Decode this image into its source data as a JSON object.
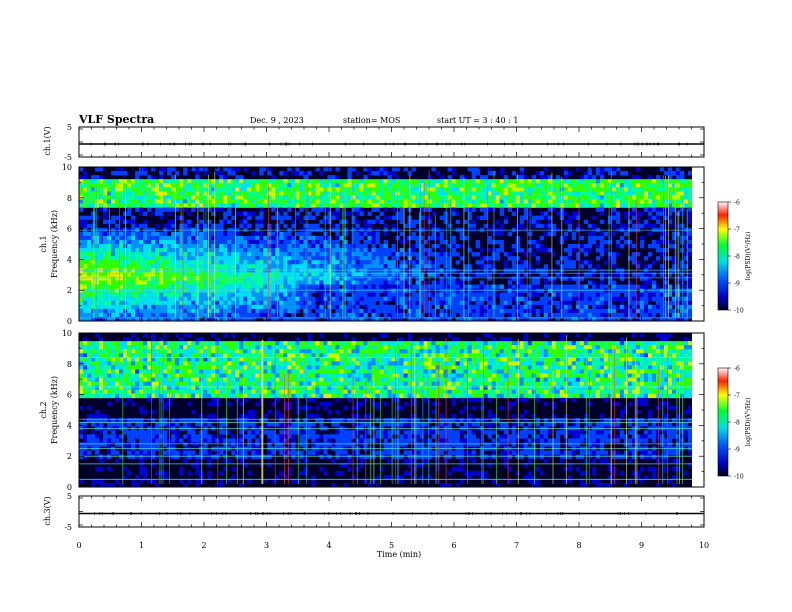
{
  "header": {
    "title": "VLF Spectra",
    "date": "Dec. 9 , 2023",
    "station": "station= MOS",
    "start": "start UT = 3 : 40 : 1"
  },
  "chart_data": [
    {
      "type": "line",
      "name": "ch1-waveform",
      "ylabel": "ch.1(V)",
      "yticks": [
        "5",
        "-5"
      ],
      "ylim": [
        -5,
        5
      ],
      "x": [
        0,
        10
      ],
      "values": [
        0,
        0
      ],
      "xlim": [
        0,
        10
      ]
    },
    {
      "type": "heatmap",
      "name": "ch1-spectrogram",
      "ylabel": "Frequency (kHz)",
      "channel_label": "ch.1",
      "yticks": [
        "0",
        "2",
        "4",
        "6",
        "8",
        "10"
      ],
      "ylim": [
        0,
        10
      ],
      "xlim": [
        0,
        10
      ],
      "colorbar": {
        "label": "log(PSD)(V²/Hz)",
        "ticks": [
          "-6",
          "-7",
          "-8",
          "-9",
          "-10"
        ],
        "range": [
          -10,
          -6
        ]
      }
    },
    {
      "type": "heatmap",
      "name": "ch2-spectrogram",
      "ylabel": "Frequency (kHz)",
      "channel_label": "ch.2",
      "yticks": [
        "0",
        "2",
        "4",
        "6",
        "8",
        "10"
      ],
      "ylim": [
        0,
        10
      ],
      "xlim": [
        0,
        10
      ],
      "colorbar": {
        "label": "log(PSD)(V²/Hz)",
        "ticks": [
          "-6",
          "-7",
          "-8",
          "-9",
          "-10"
        ],
        "range": [
          -10,
          -6
        ]
      }
    },
    {
      "type": "line",
      "name": "ch3-waveform",
      "ylabel": "ch.3(V)",
      "yticks": [
        "5",
        "-5"
      ],
      "ylim": [
        -5,
        5
      ],
      "x": [
        0,
        10
      ],
      "values": [
        0,
        0
      ],
      "xlim": [
        0,
        10
      ]
    }
  ],
  "xaxis": {
    "label": "Time (min)",
    "ticks": [
      "0",
      "1",
      "2",
      "3",
      "4",
      "5",
      "6",
      "7",
      "8",
      "9",
      "10"
    ]
  },
  "colors": {
    "background": "#ffffff",
    "colormap": [
      "#00002a",
      "#0000ff",
      "#00ffff",
      "#00ff00",
      "#ffff00",
      "#ff0000",
      "#ffffff"
    ]
  }
}
